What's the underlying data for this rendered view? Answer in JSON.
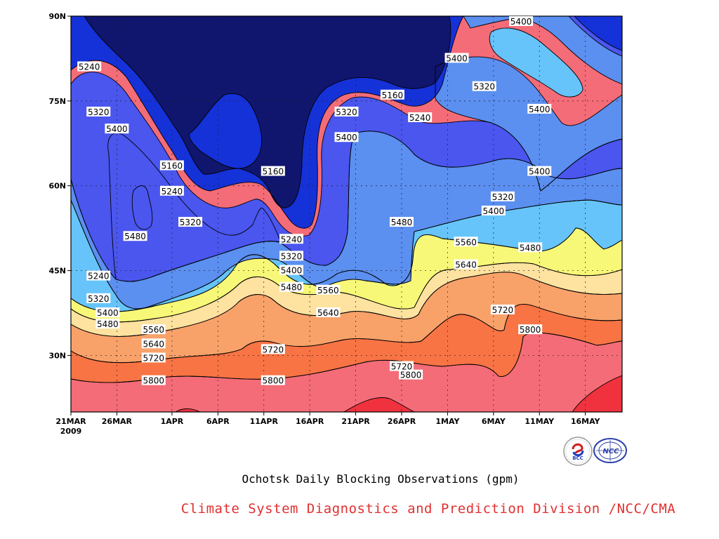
{
  "title": "Ochotsk Daily Blocking Observations (gpm)",
  "credit": "Climate System Diagnostics and Prediction Division /NCC/CMA",
  "colors": {
    "credit": "#e03030",
    "contour_line": "#000000",
    "levels": [
      "#10166e",
      "#1531d8",
      "#4a56ee",
      "#5b8ff0",
      "#66c4fa",
      "#f8f878",
      "#fee2a0",
      "#f8a26a",
      "#f87444",
      "#f46c78",
      "#f0323e"
    ]
  },
  "logos": {
    "bcc": "BCC",
    "ncc": "NCC"
  },
  "chart_data": {
    "type": "heatmap",
    "title": "",
    "xlabel": "",
    "ylabel": "",
    "x_ticks": [
      "21MAR",
      "26MAR",
      "1APR",
      "6APR",
      "11APR",
      "16APR",
      "21APR",
      "26APR",
      "1MAY",
      "6MAY",
      "11MAY",
      "16MAY"
    ],
    "x_tick_year": "2009",
    "y_ticks": [
      "30N",
      "45N",
      "60N",
      "75N",
      "90N"
    ],
    "xlim": [
      "2009-03-21",
      "2009-05-20"
    ],
    "ylim": [
      20,
      90
    ],
    "contour_levels": [
      5160,
      5240,
      5320,
      5400,
      5480,
      5560,
      5640,
      5720,
      5800
    ],
    "grid": true,
    "contour_labels": [
      {
        "value": "5240",
        "date": "2009-03-23",
        "lat": 81
      },
      {
        "value": "5320",
        "date": "2009-03-24",
        "lat": 73
      },
      {
        "value": "5400",
        "date": "2009-03-26",
        "lat": 70
      },
      {
        "value": "5160",
        "date": "2009-04-01",
        "lat": 63.5
      },
      {
        "value": "5240",
        "date": "2009-04-01",
        "lat": 59
      },
      {
        "value": "5320",
        "date": "2009-04-03",
        "lat": 53.5
      },
      {
        "value": "5480",
        "date": "2009-03-28",
        "lat": 51
      },
      {
        "value": "5160",
        "date": "2009-04-12",
        "lat": 62.5
      },
      {
        "value": "5240",
        "date": "2009-03-24",
        "lat": 44
      },
      {
        "value": "5320",
        "date": "2009-03-24",
        "lat": 40
      },
      {
        "value": "5400",
        "date": "2009-03-25",
        "lat": 37.5
      },
      {
        "value": "5480",
        "date": "2009-03-25",
        "lat": 35.5
      },
      {
        "value": "5560",
        "date": "2009-03-30",
        "lat": 34.5
      },
      {
        "value": "5640",
        "date": "2009-03-30",
        "lat": 32
      },
      {
        "value": "5720",
        "date": "2009-03-30",
        "lat": 29.5
      },
      {
        "value": "5800",
        "date": "2009-03-30",
        "lat": 25.5
      },
      {
        "value": "5240",
        "date": "2009-04-14",
        "lat": 50.5
      },
      {
        "value": "5320",
        "date": "2009-04-14",
        "lat": 47.5
      },
      {
        "value": "5400",
        "date": "2009-04-14",
        "lat": 45
      },
      {
        "value": "5480",
        "date": "2009-04-14",
        "lat": 42
      },
      {
        "value": "5560",
        "date": "2009-04-18",
        "lat": 41.5
      },
      {
        "value": "5640",
        "date": "2009-04-18",
        "lat": 37.5
      },
      {
        "value": "5720",
        "date": "2009-04-12",
        "lat": 31
      },
      {
        "value": "5800",
        "date": "2009-04-12",
        "lat": 25.5
      },
      {
        "value": "5320",
        "date": "2009-04-20",
        "lat": 73
      },
      {
        "value": "5400",
        "date": "2009-04-20",
        "lat": 68.5
      },
      {
        "value": "5160",
        "date": "2009-04-25",
        "lat": 76
      },
      {
        "value": "5240",
        "date": "2009-04-28",
        "lat": 72
      },
      {
        "value": "5480",
        "date": "2009-04-26",
        "lat": 53.5
      },
      {
        "value": "5720",
        "date": "2009-04-26",
        "lat": 28
      },
      {
        "value": "5800",
        "date": "2009-04-27",
        "lat": 26.5
      },
      {
        "value": "5400",
        "date": "2009-05-02",
        "lat": 82.5
      },
      {
        "value": "5320",
        "date": "2009-05-05",
        "lat": 77.5
      },
      {
        "value": "5400",
        "date": "2009-05-06",
        "lat": 55.5
      },
      {
        "value": "5560",
        "date": "2009-05-03",
        "lat": 50
      },
      {
        "value": "5640",
        "date": "2009-05-03",
        "lat": 46
      },
      {
        "value": "5480",
        "date": "2009-05-10",
        "lat": 49
      },
      {
        "value": "5320",
        "date": "2009-05-07",
        "lat": 58
      },
      {
        "value": "5720",
        "date": "2009-05-07",
        "lat": 38
      },
      {
        "value": "5800",
        "date": "2009-05-10",
        "lat": 34.5
      },
      {
        "value": "5400",
        "date": "2009-05-09",
        "lat": 89
      },
      {
        "value": "5400",
        "date": "2009-05-11",
        "lat": 73.5
      },
      {
        "value": "5400",
        "date": "2009-05-11",
        "lat": 62.5
      }
    ]
  }
}
